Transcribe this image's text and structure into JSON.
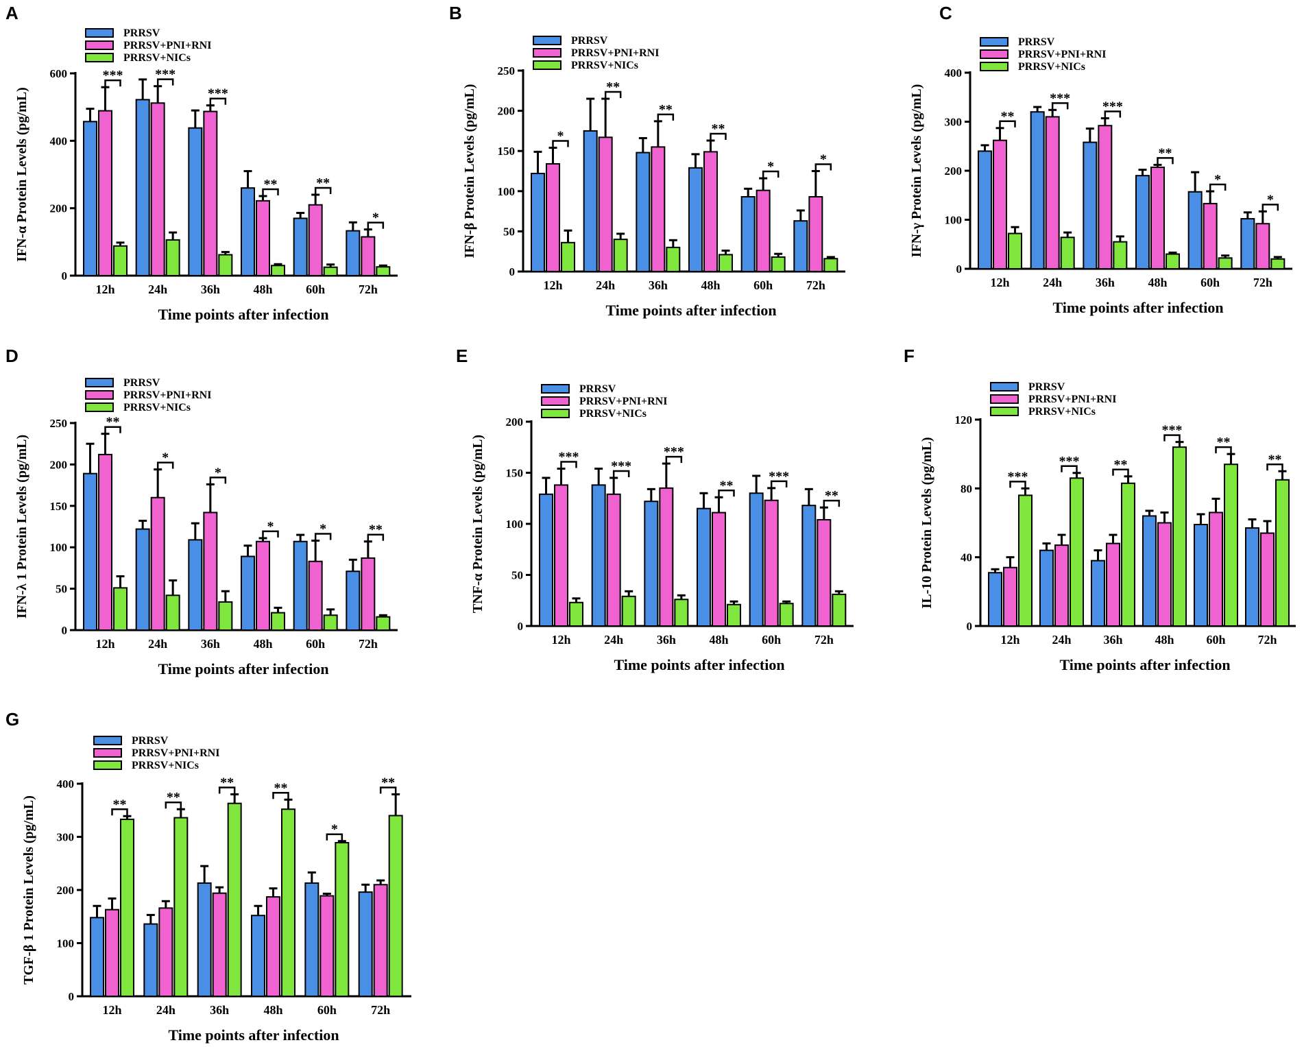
{
  "colors": {
    "PRRSV": "#4a8fe6",
    "PRRSV+PNI+RNI": "#f062cf",
    "PRRSV+NICs": "#7ee63c"
  },
  "chart_data": [
    {
      "type": "bar",
      "panel": "A",
      "ylabel": "IFN-α Protein Levels (pg/mL)",
      "xlabel": "Time points after infection",
      "ylim": [
        0,
        600
      ],
      "yticks": [
        0,
        200,
        400,
        600
      ],
      "categories": [
        "12h",
        "24h",
        "36h",
        "48h",
        "60h",
        "72h"
      ],
      "series": [
        {
          "name": "PRRSV",
          "values": [
            457,
            522,
            438,
            260,
            170,
            133
          ],
          "errors": [
            38,
            60,
            52,
            50,
            16,
            25
          ]
        },
        {
          "name": "PRRSV+PNI+RNI",
          "values": [
            489,
            512,
            487,
            222,
            210,
            115
          ],
          "errors": [
            70,
            50,
            18,
            14,
            30,
            22
          ]
        },
        {
          "name": "PRRSV+NICs",
          "values": [
            88,
            106,
            62,
            30,
            25,
            26
          ],
          "errors": [
            10,
            22,
            8,
            4,
            8,
            4
          ]
        }
      ],
      "significance": [
        "***",
        "***",
        "***",
        "**",
        "**",
        "*"
      ]
    },
    {
      "type": "bar",
      "panel": "B",
      "ylabel": "IFN-β Protein Levels (pg/mL)",
      "xlabel": "Time points after infection",
      "ylim": [
        0,
        250
      ],
      "yticks": [
        0,
        50,
        100,
        150,
        200,
        250
      ],
      "categories": [
        "12h",
        "24h",
        "36h",
        "48h",
        "60h",
        "72h"
      ],
      "series": [
        {
          "name": "PRRSV",
          "values": [
            122,
            175,
            148,
            129,
            93,
            63
          ],
          "errors": [
            27,
            40,
            18,
            17,
            10,
            13
          ]
        },
        {
          "name": "PRRSV+PNI+RNI",
          "values": [
            134,
            167,
            155,
            149,
            101,
            93
          ],
          "errors": [
            20,
            48,
            32,
            14,
            15,
            32
          ]
        },
        {
          "name": "PRRSV+NICs",
          "values": [
            36,
            40,
            30,
            21,
            18,
            16
          ],
          "errors": [
            15,
            7,
            9,
            5,
            4,
            2
          ]
        }
      ],
      "significance": [
        "*",
        "**",
        "**",
        "**",
        "*",
        "*"
      ]
    },
    {
      "type": "bar",
      "panel": "C",
      "ylabel": "IFN-γ Protein Levels (pg/mL)",
      "xlabel": "Time points after infection",
      "ylim": [
        0,
        400
      ],
      "yticks": [
        0,
        100,
        200,
        300,
        400
      ],
      "categories": [
        "12h",
        "24h",
        "36h",
        "48h",
        "60h",
        "72h"
      ],
      "series": [
        {
          "name": "PRRSV",
          "values": [
            240,
            320,
            258,
            190,
            157,
            102
          ],
          "errors": [
            12,
            10,
            28,
            12,
            40,
            13
          ]
        },
        {
          "name": "PRRSV+PNI+RNI",
          "values": [
            262,
            310,
            292,
            207,
            133,
            92
          ],
          "errors": [
            25,
            14,
            15,
            5,
            25,
            25
          ]
        },
        {
          "name": "PRRSV+NICs",
          "values": [
            72,
            64,
            55,
            30,
            22,
            20
          ],
          "errors": [
            13,
            10,
            11,
            3,
            5,
            4
          ]
        }
      ],
      "significance": [
        "**",
        "***",
        "***",
        "**",
        "*",
        "*"
      ]
    },
    {
      "type": "bar",
      "panel": "D",
      "ylabel": "IFN-λ 1 Protein Levels (pg/mL)",
      "xlabel": "Time points after infection",
      "ylim": [
        0,
        250
      ],
      "yticks": [
        0,
        50,
        100,
        150,
        200,
        250
      ],
      "categories": [
        "12h",
        "24h",
        "36h",
        "48h",
        "60h",
        "72h"
      ],
      "series": [
        {
          "name": "PRRSV",
          "values": [
            189,
            122,
            109,
            89,
            107,
            71
          ],
          "errors": [
            36,
            10,
            20,
            13,
            8,
            14
          ]
        },
        {
          "name": "PRRSV+PNI+RNI",
          "values": [
            212,
            160,
            142,
            107,
            83,
            87
          ],
          "errors": [
            25,
            34,
            34,
            4,
            25,
            20
          ]
        },
        {
          "name": "PRRSV+NICs",
          "values": [
            51,
            42,
            34,
            21,
            18,
            16
          ],
          "errors": [
            14,
            18,
            13,
            6,
            7,
            2
          ]
        }
      ],
      "significance": [
        "**",
        "*",
        "*",
        "*",
        "*",
        "**"
      ]
    },
    {
      "type": "bar",
      "panel": "E",
      "ylabel": "TNF-α Protein Levels (pg/mL)",
      "xlabel": "Time points after infection",
      "ylim": [
        0,
        200
      ],
      "yticks": [
        0,
        50,
        100,
        150,
        200
      ],
      "categories": [
        "12h",
        "24h",
        "36h",
        "48h",
        "60h",
        "72h"
      ],
      "series": [
        {
          "name": "PRRSV",
          "values": [
            129,
            138,
            122,
            115,
            130,
            118
          ],
          "errors": [
            16,
            16,
            12,
            15,
            17,
            16
          ]
        },
        {
          "name": "PRRSV+PNI+RNI",
          "values": [
            138,
            129,
            135,
            111,
            123,
            104
          ],
          "errors": [
            16,
            16,
            24,
            15,
            12,
            12
          ]
        },
        {
          "name": "PRRSV+NICs",
          "values": [
            23,
            29,
            26,
            21,
            22,
            31
          ],
          "errors": [
            4,
            5,
            4,
            3,
            2,
            3
          ]
        }
      ],
      "significance": [
        "***",
        "***",
        "***",
        "**",
        "***",
        "**"
      ]
    },
    {
      "type": "bar",
      "panel": "F",
      "ylabel": "IL-10 Protein Levels (pg/mL)",
      "xlabel": "Time points after infection",
      "ylim": [
        0,
        120
      ],
      "yticks": [
        0,
        40,
        80,
        120
      ],
      "categories": [
        "12h",
        "24h",
        "36h",
        "48h",
        "60h",
        "72h"
      ],
      "series": [
        {
          "name": "PRRSV",
          "values": [
            31,
            44,
            38,
            64,
            59,
            57
          ],
          "errors": [
            2,
            4,
            6,
            3,
            6,
            5
          ]
        },
        {
          "name": "PRRSV+PNI+RNI",
          "values": [
            34,
            47,
            48,
            60,
            66,
            54
          ],
          "errors": [
            6,
            6,
            5,
            6,
            8,
            7
          ]
        },
        {
          "name": "PRRSV+NICs",
          "values": [
            76,
            86,
            83,
            104,
            94,
            85
          ],
          "errors": [
            4,
            3,
            4,
            3,
            6,
            5
          ]
        }
      ],
      "significance": [
        "***",
        "***",
        "**",
        "***",
        "**",
        "**"
      ]
    },
    {
      "type": "bar",
      "panel": "G",
      "ylabel": "TGF-β 1 Protein Levels (pg/mL)",
      "xlabel": "Time points after infection",
      "ylim": [
        0,
        400
      ],
      "yticks": [
        0,
        100,
        200,
        300,
        400
      ],
      "categories": [
        "12h",
        "24h",
        "36h",
        "48h",
        "60h",
        "72h"
      ],
      "series": [
        {
          "name": "PRRSV",
          "values": [
            148,
            136,
            213,
            152,
            213,
            196
          ],
          "errors": [
            22,
            17,
            32,
            18,
            20,
            14
          ]
        },
        {
          "name": "PRRSV+PNI+RNI",
          "values": [
            163,
            166,
            194,
            187,
            189,
            210
          ],
          "errors": [
            21,
            13,
            11,
            16,
            4,
            8
          ]
        },
        {
          "name": "PRRSV+NICs",
          "values": [
            333,
            336,
            363,
            352,
            289,
            340
          ],
          "errors": [
            6,
            16,
            17,
            18,
            3,
            40
          ]
        }
      ],
      "significance": [
        "**",
        "**",
        "**",
        "**",
        "*",
        "**"
      ]
    }
  ]
}
